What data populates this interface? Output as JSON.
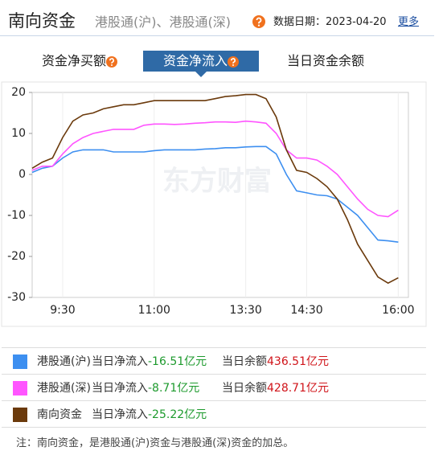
{
  "header": {
    "title": "南向资金",
    "subtitle": "港股通(沪)、港股通(深)",
    "date_label": "数据日期：2023-04-20",
    "more": "更多"
  },
  "tabs": [
    "资金净买额",
    "资金净流入",
    "当日资金余额"
  ],
  "watermark": "东方财富",
  "chart_data": {
    "type": "line",
    "x": [
      0,
      10,
      20,
      30,
      40,
      50,
      60,
      70,
      80,
      90,
      100,
      110,
      120,
      130,
      140,
      150,
      160,
      170,
      180,
      190,
      200,
      210,
      220,
      230,
      240,
      250,
      260,
      270,
      280,
      290,
      300,
      310,
      320,
      330,
      340,
      350,
      360
    ],
    "xlim": [
      0,
      370
    ],
    "xticks": [
      {
        "value": 30,
        "label": "9:30"
      },
      {
        "value": 120,
        "label": "11:00"
      },
      {
        "value": 210,
        "label": "13:30"
      },
      {
        "value": 270,
        "label": "14:30"
      },
      {
        "value": 360,
        "label": "16:00"
      }
    ],
    "ylim": [
      -30,
      20
    ],
    "yticks": [
      -30,
      -20,
      -10,
      0,
      10,
      20
    ],
    "grid": true,
    "series": [
      {
        "name": "港股通(沪)",
        "color": "#3d8ff0",
        "values": [
          0.5,
          1.5,
          2,
          4,
          5.5,
          6,
          6,
          6,
          5.5,
          5.5,
          5.5,
          5.5,
          5.8,
          6,
          6,
          6,
          6,
          6.2,
          6.3,
          6.5,
          6.5,
          6.7,
          6.8,
          6.8,
          5,
          0,
          -4,
          -4.5,
          -5,
          -5.2,
          -6,
          -8,
          -10,
          -13,
          -16,
          -16.2,
          -16.51
        ]
      },
      {
        "name": "港股通(深)",
        "color": "#ff55ff",
        "values": [
          1,
          2,
          2,
          5,
          7.5,
          9,
          10,
          10.5,
          11,
          11,
          11,
          12,
          12.3,
          12.3,
          12.2,
          12.3,
          12.5,
          12.6,
          12.8,
          12.8,
          12.7,
          13,
          12.8,
          12.5,
          10,
          6,
          4,
          4,
          3.5,
          2,
          0,
          -3,
          -6,
          -8.5,
          -10,
          -10.3,
          -8.71
        ]
      },
      {
        "name": "南向资金",
        "color": "#6b3a0c",
        "values": [
          1.5,
          3,
          4,
          9,
          13,
          14.5,
          15,
          16,
          16.5,
          17,
          17,
          17.5,
          18,
          18,
          18,
          18,
          18,
          18,
          18.5,
          19,
          19.2,
          19.5,
          19.5,
          18.5,
          14,
          6,
          1,
          0.5,
          -1,
          -3,
          -6,
          -11,
          -17,
          -21,
          -25,
          -26.5,
          -25.22
        ]
      }
    ]
  },
  "summary": {
    "rows": [
      {
        "net_label": "当日净流入",
        "net": "-16.51亿元",
        "balance_label": "当日余额",
        "balance": "436.51亿元"
      },
      {
        "net_label": "当日净流入",
        "net": "-8.71亿元",
        "balance_label": "当日余额",
        "balance": "428.71亿元"
      },
      {
        "net_label": "当日净流入",
        "net": "-25.22亿元"
      }
    ]
  },
  "note": "注：南向资金，是港股通(沪)资金与港股通(深)资金的加总。"
}
